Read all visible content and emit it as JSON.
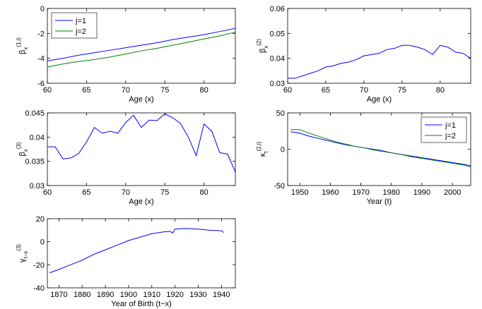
{
  "chart_data": [
    {
      "type": "line",
      "xlabel": "Age (x)",
      "ylabel": {
        "base": "β",
        "sub": "x",
        "sup": "(1,i)"
      },
      "x": [
        60,
        62,
        64,
        66,
        68,
        70,
        72,
        74,
        76,
        78,
        80,
        82,
        84
      ],
      "series": [
        {
          "name": "j=1",
          "color": "#0000ff",
          "values": [
            -4.2,
            -4.0,
            -3.75,
            -3.55,
            -3.35,
            -3.15,
            -2.95,
            -2.75,
            -2.5,
            -2.3,
            -2.1,
            -1.85,
            -1.6
          ]
        },
        {
          "name": "j=2",
          "color": "#008000",
          "values": [
            -4.7,
            -4.45,
            -4.25,
            -4.1,
            -3.9,
            -3.65,
            -3.4,
            -3.2,
            -2.95,
            -2.7,
            -2.45,
            -2.2,
            -1.9
          ]
        }
      ],
      "xlim": [
        60,
        84
      ],
      "ylim": [
        -6,
        0
      ],
      "xticks": [
        60,
        65,
        70,
        75,
        80
      ],
      "yticks": [
        -6,
        -4,
        -2,
        0
      ],
      "legend": "upper left"
    },
    {
      "type": "line",
      "xlabel": "Age (x)",
      "ylabel": {
        "base": "β",
        "sub": "x",
        "sup": "(2)"
      },
      "x": [
        60,
        61,
        62,
        63,
        64,
        65,
        66,
        67,
        68,
        69,
        70,
        71,
        72,
        73,
        74,
        75,
        76,
        77,
        78,
        79,
        80,
        81,
        82,
        83,
        84
      ],
      "series": [
        {
          "color": "#0000ff",
          "values": [
            0.032,
            0.032,
            0.033,
            0.034,
            0.035,
            0.0365,
            0.037,
            0.038,
            0.0385,
            0.0395,
            0.041,
            0.0415,
            0.042,
            0.0435,
            0.044,
            0.0452,
            0.0452,
            0.0445,
            0.0435,
            0.0415,
            0.0452,
            0.0445,
            0.0425,
            0.042,
            0.04
          ]
        }
      ],
      "xlim": [
        60,
        84
      ],
      "ylim": [
        0.03,
        0.06
      ],
      "xticks": [
        60,
        65,
        70,
        75,
        80
      ],
      "yticks": [
        0.03,
        0.04,
        0.05,
        0.06
      ]
    },
    {
      "type": "line",
      "xlabel": "Age (x)",
      "ylabel": {
        "base": "β",
        "sub": "x",
        "sup": "(3)"
      },
      "x": [
        60,
        61,
        62,
        63,
        64,
        65,
        66,
        67,
        68,
        69,
        70,
        71,
        72,
        73,
        74,
        75,
        76,
        77,
        78,
        79,
        80,
        81,
        82,
        83,
        84
      ],
      "series": [
        {
          "color": "#0000ff",
          "values": [
            0.038,
            0.038,
            0.0355,
            0.0357,
            0.0366,
            0.039,
            0.042,
            0.0408,
            0.0412,
            0.0408,
            0.043,
            0.0445,
            0.042,
            0.0435,
            0.0434,
            0.0448,
            0.044,
            0.0428,
            0.04,
            0.0362,
            0.0427,
            0.0412,
            0.0368,
            0.0365,
            0.0328
          ]
        }
      ],
      "xlim": [
        60,
        84
      ],
      "ylim": [
        0.03,
        0.045
      ],
      "xticks": [
        60,
        65,
        70,
        75,
        80
      ],
      "yticks": [
        0.03,
        0.035,
        0.04,
        0.045
      ]
    },
    {
      "type": "line",
      "xlabel": "Year (t)",
      "ylabel": {
        "base": "κ",
        "sub": "t",
        "sup": "(2,i)"
      },
      "x": [
        1947,
        1950,
        1953,
        1956,
        1959,
        1962,
        1965,
        1968,
        1971,
        1974,
        1977,
        1980,
        1983,
        1986,
        1989,
        1992,
        1995,
        1998,
        2001,
        2004,
        2006
      ],
      "series": [
        {
          "name": "j=1",
          "color": "#0000ff",
          "values": [
            24,
            22,
            18,
            15,
            12,
            9,
            6,
            4,
            2,
            0,
            -2,
            -5,
            -7,
            -9,
            -11,
            -13,
            -15,
            -17,
            -19,
            -21,
            -23
          ]
        },
        {
          "name": "j=2",
          "color": "#008000",
          "values": [
            27,
            27,
            22,
            18,
            14,
            10,
            7,
            4,
            2,
            -1,
            -3,
            -5,
            -7,
            -10,
            -12,
            -14,
            -16,
            -18,
            -20,
            -22,
            -24
          ]
        }
      ],
      "xlim": [
        1946,
        2006
      ],
      "ylim": [
        -50,
        50
      ],
      "xticks": [
        1950,
        1960,
        1970,
        1980,
        1990,
        2000
      ],
      "yticks": [
        -50,
        0,
        50
      ],
      "legend": "upper right"
    },
    {
      "type": "line",
      "xlabel": "Year of Birth (t−x)",
      "ylabel": {
        "base": "γ",
        "sub": "t−x",
        "sup": "(3)"
      },
      "x": [
        1866,
        1870,
        1875,
        1880,
        1885,
        1890,
        1895,
        1900,
        1905,
        1910,
        1915,
        1918,
        1919,
        1920,
        1925,
        1930,
        1935,
        1940,
        1941
      ],
      "series": [
        {
          "color": "#0000ff",
          "values": [
            -27,
            -24,
            -20,
            -16,
            -11,
            -7,
            -3,
            1,
            4,
            7,
            8.5,
            9,
            7.5,
            11,
            11.5,
            11,
            10,
            9.5,
            8
          ]
        }
      ],
      "xlim": [
        1865,
        1946
      ],
      "ylim": [
        -40,
        20
      ],
      "xticks": [
        1870,
        1880,
        1890,
        1900,
        1910,
        1920,
        1930,
        1940
      ],
      "yticks": [
        -40,
        -20,
        0,
        20
      ]
    }
  ]
}
